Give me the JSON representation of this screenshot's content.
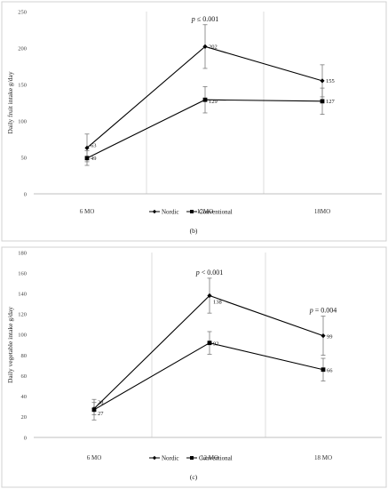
{
  "chart_data": [
    {
      "type": "line",
      "panel": "(b)",
      "ylabel": "Daily fruit intake g/day",
      "xlabel": "",
      "categories": [
        "6 MO",
        "12MO",
        "18MO"
      ],
      "ylim": [
        0,
        250
      ],
      "yticks": [
        "0",
        "50",
        "100",
        "150",
        "200",
        "250"
      ],
      "grid": false,
      "legend": "bottom",
      "series": [
        {
          "name": "Nordic",
          "marker": "diamond",
          "values": [
            63,
            202,
            155
          ],
          "labels": [
            "63",
            "202",
            "155"
          ],
          "err": [
            19,
            30,
            22
          ]
        },
        {
          "name": "Conventional",
          "marker": "square",
          "values": [
            49,
            129,
            127
          ],
          "labels": [
            "49",
            "129",
            "127"
          ],
          "err": [
            10,
            18,
            18
          ]
        }
      ],
      "annotations": [
        {
          "category": "12MO",
          "p": "p",
          "text": " ≤ 0.001"
        }
      ]
    },
    {
      "type": "line",
      "panel": "(c)",
      "ylabel": "Daily vegetable intake g/day",
      "xlabel": "",
      "categories": [
        "6 MO",
        "12 MO",
        "18 MO"
      ],
      "ylim": [
        0,
        180
      ],
      "yticks": [
        "0",
        "20",
        "40",
        "60",
        "80",
        "100",
        "120",
        "140",
        "160",
        "180"
      ],
      "grid": false,
      "legend": "bottom",
      "series": [
        {
          "name": "Nordic",
          "marker": "diamond",
          "values": [
            28,
            138,
            99
          ],
          "labels": [
            "28",
            "138",
            "99"
          ],
          "err": [
            6,
            17,
            19
          ]
        },
        {
          "name": "Conventional",
          "marker": "square",
          "values": [
            27,
            92,
            66
          ],
          "labels": [
            "27",
            "92",
            "66"
          ],
          "err": [
            10,
            11,
            11
          ]
        }
      ],
      "annotations": [
        {
          "category": "12 MO",
          "p": "p",
          "text": " < 0.001"
        },
        {
          "category": "18 MO",
          "p": "p",
          "text": " = 0.004"
        }
      ]
    }
  ]
}
